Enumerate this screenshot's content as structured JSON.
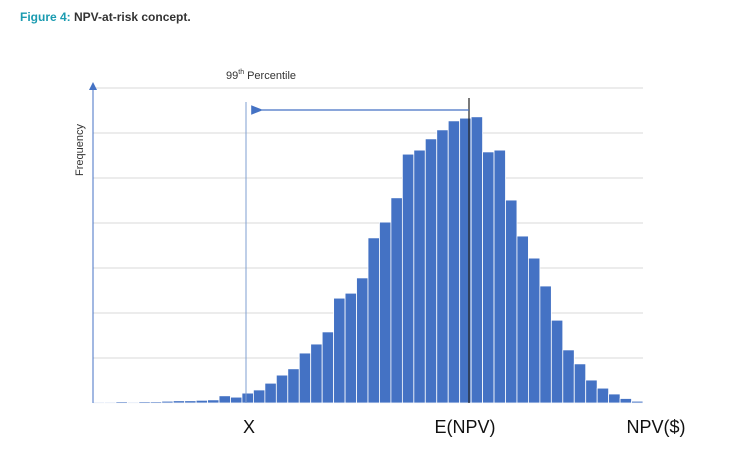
{
  "chart_data": {
    "type": "bar",
    "figure_label": "Figure 4:",
    "title": "NPV-at-risk concept.",
    "ylabel": "Frequency",
    "annotation": {
      "number": "99",
      "suffix": "th",
      "text": "Percentile"
    },
    "markers": [
      "X",
      "E(NPV)",
      "NPV($)"
    ],
    "categories": [
      null,
      null,
      null,
      null,
      null,
      null,
      null,
      null,
      null,
      null,
      null,
      null,
      null,
      null,
      null,
      null,
      null,
      null,
      null,
      null,
      null,
      null,
      null,
      null,
      null,
      null,
      null,
      null,
      null,
      null,
      null,
      null,
      null,
      null,
      null,
      null,
      null,
      null,
      null,
      null,
      null,
      null,
      null,
      null,
      null,
      null,
      null,
      null
    ],
    "values": [
      0.02,
      0.02,
      0.03,
      0.02,
      0.03,
      0.03,
      0.04,
      0.05,
      0.05,
      0.06,
      0.07,
      0.16,
      0.13,
      0.22,
      0.29,
      0.44,
      0.62,
      0.76,
      1.11,
      1.31,
      1.58,
      2.33,
      2.44,
      2.78,
      3.67,
      4.02,
      4.56,
      5.53,
      5.62,
      5.87,
      6.07,
      6.27,
      6.33,
      6.36,
      5.58,
      5.62,
      4.51,
      3.71,
      3.22,
      2.6,
      1.84,
      1.18,
      0.87,
      0.51,
      0.33,
      0.2,
      0.1,
      0.04
    ],
    "color": "#4472c4",
    "ylim": [
      0,
      7
    ],
    "yticks": [
      0,
      1,
      2,
      3,
      4,
      5,
      6,
      7
    ],
    "ytick_labels": false,
    "grid": true
  }
}
